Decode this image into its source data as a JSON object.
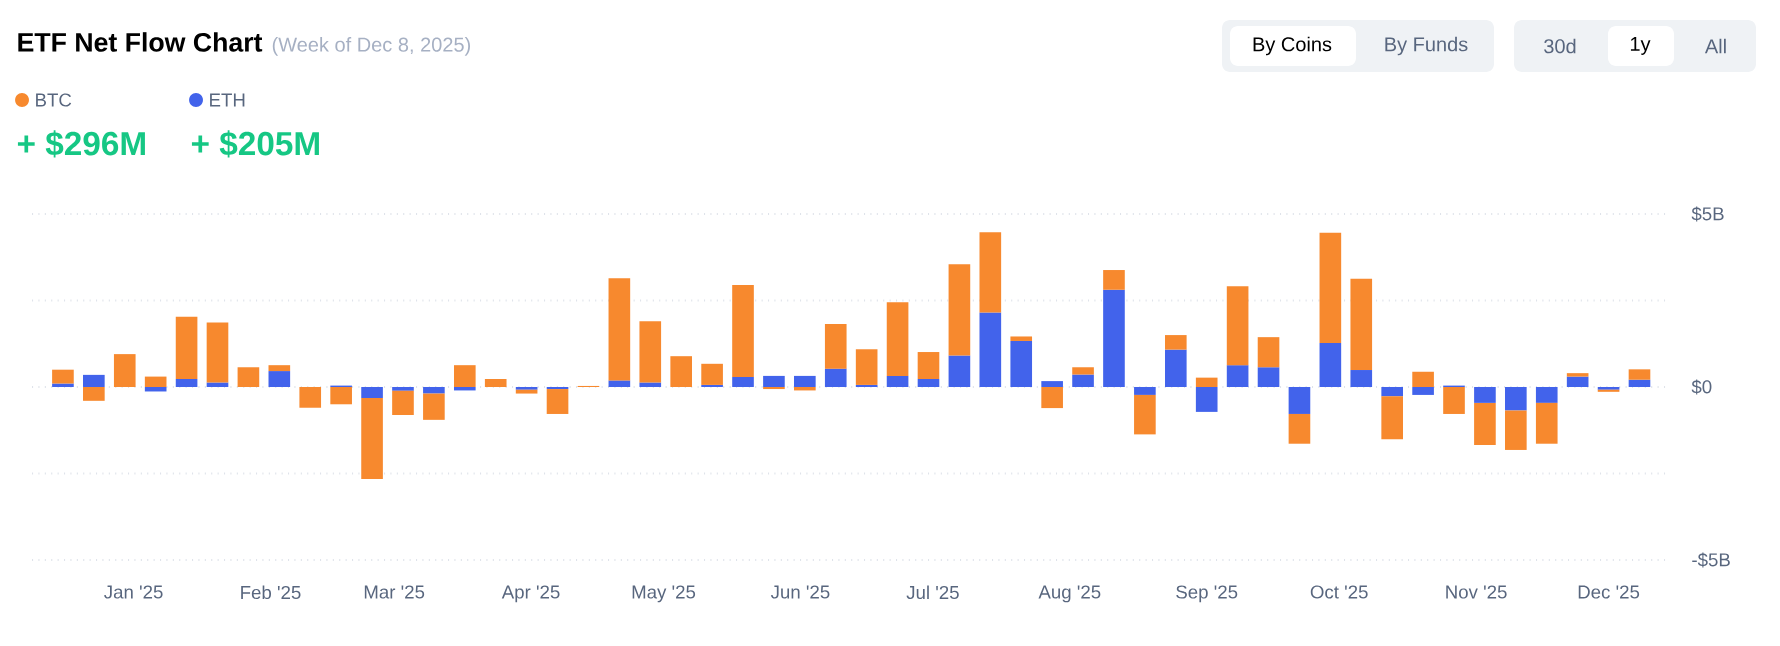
{
  "chart_data": {
    "type": "bar",
    "title": "ETF Net Flow Chart",
    "subtitle": "(Week of Dec 8, 2025)",
    "stacked": true,
    "grid": "y",
    "legend": "top left",
    "annotations": [
      "+ $296M",
      "+ $205M",
      "By Coins",
      "By Funds",
      "30d",
      "1y",
      "All"
    ],
    "x": [
      "2024-12-16",
      "2024-12-23",
      "2024-12-30",
      "2025-01-06",
      "2025-01-13",
      "2025-01-20",
      "2025-01-27",
      "2025-02-03",
      "2025-02-10",
      "2025-02-17",
      "2025-02-24",
      "2025-03-03",
      "2025-03-10",
      "2025-03-17",
      "2025-03-24",
      "2025-03-31",
      "2025-04-07",
      "2025-04-14",
      "2025-04-21",
      "2025-04-28",
      "2025-05-05",
      "2025-05-12",
      "2025-05-19",
      "2025-05-26",
      "2025-06-02",
      "2025-06-09",
      "2025-06-16",
      "2025-06-23",
      "2025-06-30",
      "2025-07-07",
      "2025-07-14",
      "2025-07-21",
      "2025-07-28",
      "2025-08-04",
      "2025-08-11",
      "2025-08-18",
      "2025-08-25",
      "2025-09-01",
      "2025-09-08",
      "2025-09-15",
      "2025-09-22",
      "2025-09-29",
      "2025-10-06",
      "2025-10-13",
      "2025-10-20",
      "2025-10-27",
      "2025-11-03",
      "2025-11-10",
      "2025-11-17",
      "2025-11-24",
      "2025-12-01",
      "2025-12-08"
    ],
    "xlim": [
      "2024-12-09",
      "2025-12-14"
    ],
    "xticks": [
      {
        "value": "2025-01-01",
        "label": "Jan '25"
      },
      {
        "value": "2025-02-01",
        "label": "Feb '25"
      },
      {
        "value": "2025-03-01",
        "label": "Mar '25"
      },
      {
        "value": "2025-04-01",
        "label": "Apr '25"
      },
      {
        "value": "2025-05-01",
        "label": "May '25"
      },
      {
        "value": "2025-06-01",
        "label": "Jun '25"
      },
      {
        "value": "2025-07-01",
        "label": "Jul '25"
      },
      {
        "value": "2025-08-01",
        "label": "Aug '25"
      },
      {
        "value": "2025-09-01",
        "label": "Sep '25"
      },
      {
        "value": "2025-10-01",
        "label": "Oct '25"
      },
      {
        "value": "2025-11-01",
        "label": "Nov '25"
      },
      {
        "value": "2025-12-01",
        "label": "Dec '25"
      }
    ],
    "ylim": [
      -5,
      5
    ],
    "yticks": [
      {
        "value": -5,
        "label": "-$5B"
      },
      {
        "value": -2.5,
        "label": null
      },
      {
        "value": 0,
        "label": "$0"
      },
      {
        "value": 2.5,
        "label": null
      },
      {
        "value": 5,
        "label": "$5B"
      }
    ],
    "series": [
      {
        "name": "ETH",
        "color": "#4263eb",
        "values": [
          0.1,
          0.35,
          0,
          -0.13,
          0.23,
          0.13,
          0,
          0.46,
          0,
          0.04,
          -0.32,
          -0.11,
          -0.19,
          -0.1,
          0,
          -0.08,
          -0.06,
          0,
          0.19,
          0.13,
          0,
          0.06,
          0.29,
          0.32,
          0.32,
          0.53,
          0.06,
          0.32,
          0.23,
          0.91,
          2.15,
          1.33,
          0.17,
          0.36,
          2.81,
          -0.23,
          1.08,
          -0.72,
          0.63,
          0.57,
          -0.78,
          1.27,
          0.49,
          -0.27,
          -0.23,
          0.04,
          -0.46,
          -0.68,
          -0.46,
          0.3,
          -0.08,
          0.21
        ]
      },
      {
        "name": "BTC",
        "color": "#f7892e",
        "values": [
          0.4,
          -0.4,
          0.95,
          0.3,
          1.8,
          1.73,
          0.57,
          0.17,
          -0.6,
          -0.5,
          -2.34,
          -0.7,
          -0.76,
          0.63,
          0.23,
          -0.11,
          -0.72,
          0.03,
          2.95,
          1.77,
          0.89,
          0.61,
          2.66,
          -0.06,
          -0.1,
          1.29,
          1.03,
          2.13,
          0.78,
          2.64,
          2.32,
          0.13,
          -0.61,
          0.21,
          0.57,
          -1.14,
          0.42,
          0.27,
          2.28,
          0.87,
          -0.86,
          3.19,
          2.64,
          -1.24,
          0.44,
          -0.78,
          -1.22,
          -1.14,
          -1.18,
          0.1,
          -0.06,
          0.3
        ]
      }
    ]
  }
}
